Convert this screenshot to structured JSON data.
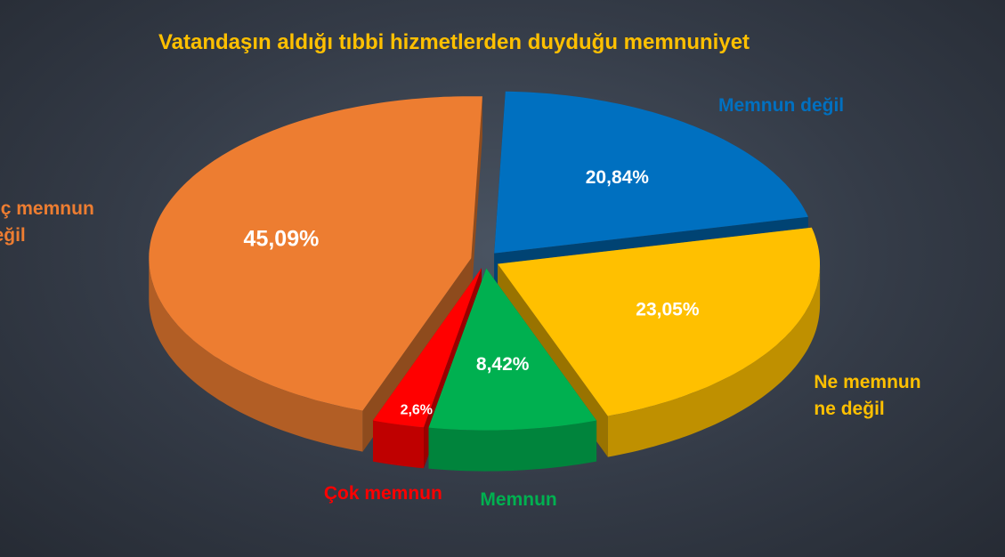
{
  "chart_data": {
    "type": "pie",
    "title": "Vatandaşın aldığı tıbbi hizmetlerden duyduğu memnuniyet",
    "categories": [
      "Memnun değil",
      "Ne memnun ne değil",
      "Memnun",
      "Çok memnun",
      "Hiç memnun değil"
    ],
    "values": [
      20.84,
      23.05,
      8.42,
      2.6,
      45.09
    ],
    "value_labels": [
      "20,84%",
      "23,05%",
      "8,42%",
      "2,6%",
      "45,09%"
    ],
    "colors": [
      "#0070c0",
      "#ffc000",
      "#00b050",
      "#ff0000",
      "#ed7d31"
    ]
  }
}
